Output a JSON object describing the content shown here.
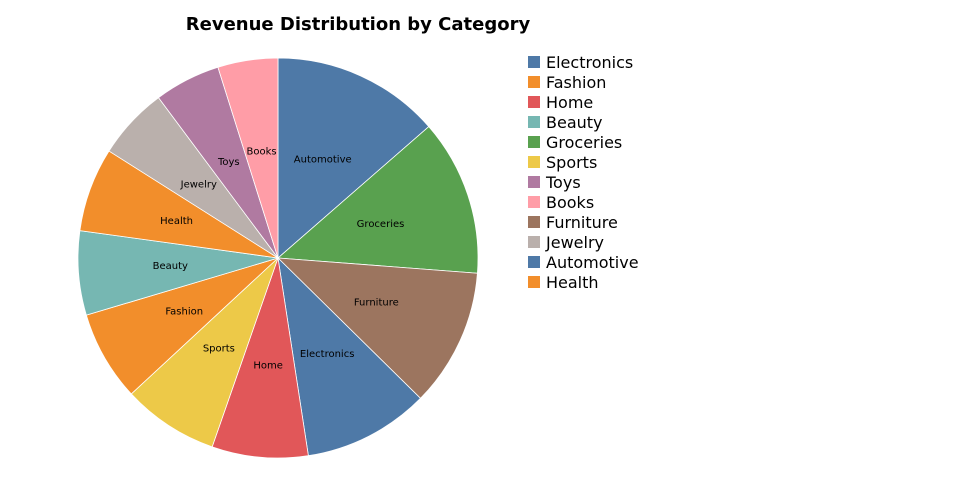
{
  "chart_data": {
    "type": "pie",
    "title": "Revenue Distribution by Category",
    "start_angle_deg": 0,
    "direction": "clockwise",
    "slices": [
      {
        "label": "Automotive",
        "value": 14.0,
        "color": "#4e79a7"
      },
      {
        "label": "Groceries",
        "value": 13.0,
        "color": "#59a14f"
      },
      {
        "label": "Furniture",
        "value": 11.5,
        "color": "#9c755f"
      },
      {
        "label": "Electronics",
        "value": 10.5,
        "color": "#4e79a7"
      },
      {
        "label": "Home",
        "value": 8.0,
        "color": "#e15759"
      },
      {
        "label": "Sports",
        "value": 8.0,
        "color": "#edc948"
      },
      {
        "label": "Fashion",
        "value": 7.5,
        "color": "#f28e2b"
      },
      {
        "label": "Beauty",
        "value": 7.0,
        "color": "#76b7b2"
      },
      {
        "label": "Health",
        "value": 7.0,
        "color": "#f28e2b"
      },
      {
        "label": "Jewelry",
        "value": 6.0,
        "color": "#bab0ac"
      },
      {
        "label": "Toys",
        "value": 5.5,
        "color": "#b07aa1"
      },
      {
        "label": "Books",
        "value": 5.0,
        "color": "#ff9da7"
      }
    ],
    "legend": {
      "placement": "right",
      "entries": [
        {
          "label": "Electronics",
          "color": "#4e79a7"
        },
        {
          "label": "Fashion",
          "color": "#f28e2b"
        },
        {
          "label": "Home",
          "color": "#e15759"
        },
        {
          "label": "Beauty",
          "color": "#76b7b2"
        },
        {
          "label": "Groceries",
          "color": "#59a14f"
        },
        {
          "label": "Sports",
          "color": "#edc948"
        },
        {
          "label": "Toys",
          "color": "#b07aa1"
        },
        {
          "label": "Books",
          "color": "#ff9da7"
        },
        {
          "label": "Furniture",
          "color": "#9c755f"
        },
        {
          "label": "Jewelry",
          "color": "#bab0ac"
        },
        {
          "label": "Automotive",
          "color": "#4e79a7"
        },
        {
          "label": "Health",
          "color": "#f28e2b"
        }
      ]
    }
  }
}
